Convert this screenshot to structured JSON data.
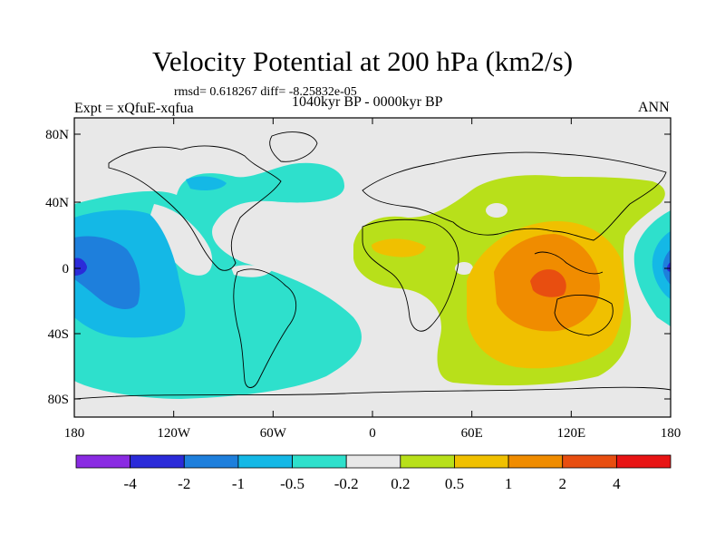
{
  "header": {
    "title": "Velocity Potential at 200 hPa (km2/s)",
    "stats": "rmsd= 0.618267 diff= -8.25832e-05",
    "expt": "Expt = xQfuE-xqfua",
    "period": "1040kyr BP - 0000kyr BP",
    "season": "ANN"
  },
  "axes": {
    "lat_labels": [
      "80N",
      "40N",
      "0",
      "40S",
      "80S"
    ],
    "lon_labels": [
      "180",
      "120W",
      "60W",
      "0",
      "60E",
      "120E",
      "180"
    ]
  },
  "colorbar": {
    "colors": [
      "#8a2be2",
      "#2b2bd9",
      "#1e7fdc",
      "#14b8e6",
      "#2ee0cc",
      "#e8e8e8",
      "#b8e01a",
      "#f0c000",
      "#f08c00",
      "#e84e10",
      "#e81414"
    ],
    "labels": [
      "-4",
      "-2",
      "-1",
      "-0.5",
      "-0.2",
      "0.2",
      "0.5",
      "1",
      "2",
      "4"
    ]
  },
  "map_colors": {
    "ocean_bg": "#e8e8e8",
    "coast": "#000000"
  }
}
